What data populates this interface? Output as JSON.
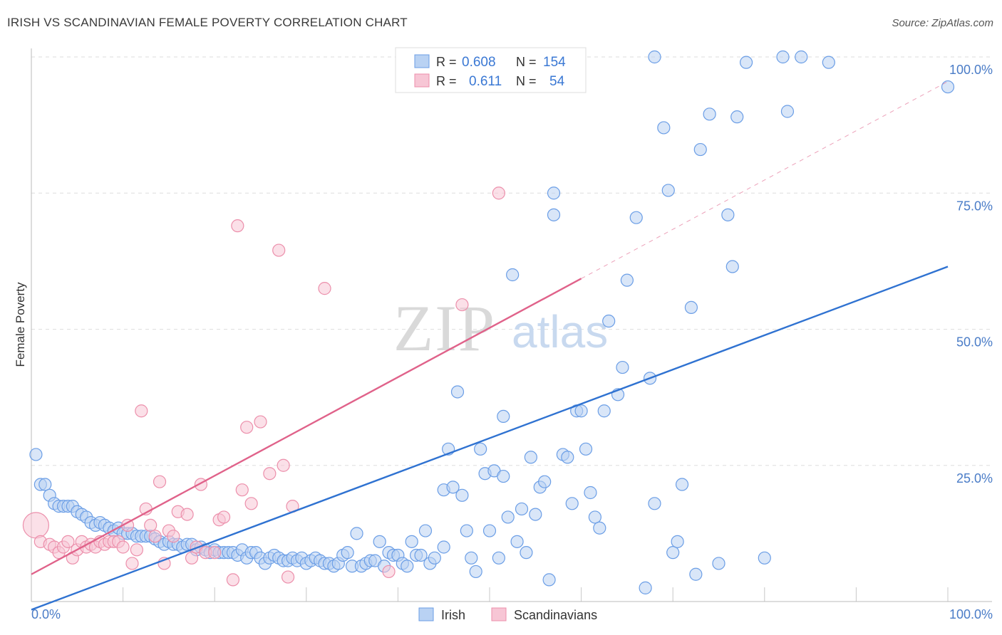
{
  "title": "IRISH VS SCANDINAVIAN FEMALE POVERTY CORRELATION CHART",
  "source": "Source: ZipAtlas.com",
  "watermark": {
    "zip": "ZIP",
    "atlas": "atlas"
  },
  "chart_data": {
    "type": "scatter",
    "title": "IRISH VS SCANDINAVIAN FEMALE POVERTY CORRELATION CHART",
    "xlabel": "",
    "ylabel": "Female Poverty",
    "xlim": [
      0,
      100
    ],
    "ylim": [
      0,
      100
    ],
    "x_tick_labels": [
      "0.0%",
      "100.0%"
    ],
    "y_ticks": [
      25,
      50,
      75,
      100
    ],
    "y_tick_labels": [
      "25.0%",
      "50.0%",
      "75.0%",
      "100.0%"
    ],
    "legend": {
      "placement": "top-center",
      "rows": [
        {
          "r_label": "R =",
          "r_value": "0.608",
          "n_label": "N =",
          "n_value": "154"
        },
        {
          "r_label": "R =",
          "r_value": "0.611",
          "n_label": "N =",
          "n_value": "54"
        }
      ]
    },
    "bottom_legend": [
      "Irish",
      "Scandinavians"
    ],
    "series": [
      {
        "name": "Irish",
        "color": "#6b9ee6",
        "fill": "#b9d2f3",
        "line": "#2f72d1",
        "trend": {
          "x0": 0,
          "y0": -1.5,
          "x1": 100,
          "y1": 61.5,
          "dash_from": null
        },
        "points": [
          [
            0.5,
            27
          ],
          [
            1,
            21.5
          ],
          [
            1.5,
            21.5
          ],
          [
            2,
            19.5
          ],
          [
            2.5,
            18
          ],
          [
            3,
            17.5
          ],
          [
            3.5,
            17.5
          ],
          [
            4,
            17.5
          ],
          [
            4.5,
            17.5
          ],
          [
            5,
            16.5
          ],
          [
            5.5,
            16
          ],
          [
            6,
            15.5
          ],
          [
            6.5,
            14.5
          ],
          [
            7,
            14
          ],
          [
            7.5,
            14.5
          ],
          [
            8,
            14
          ],
          [
            8.5,
            13.5
          ],
          [
            9,
            13
          ],
          [
            9.5,
            13.5
          ],
          [
            10,
            12.5
          ],
          [
            10.5,
            12.5
          ],
          [
            11,
            12.5
          ],
          [
            11.5,
            12
          ],
          [
            12,
            12
          ],
          [
            12.5,
            12
          ],
          [
            13,
            12
          ],
          [
            13.5,
            11.5
          ],
          [
            14,
            11
          ],
          [
            14.5,
            10.5
          ],
          [
            15,
            11
          ],
          [
            15.5,
            10.5
          ],
          [
            16,
            10.5
          ],
          [
            16.5,
            10
          ],
          [
            17,
            10.5
          ],
          [
            17.5,
            10.5
          ],
          [
            18,
            9.5
          ],
          [
            18.5,
            10
          ],
          [
            19,
            9.5
          ],
          [
            19.5,
            9
          ],
          [
            20,
            9.5
          ],
          [
            20.5,
            9
          ],
          [
            21,
            9
          ],
          [
            21.5,
            9
          ],
          [
            22,
            9
          ],
          [
            22.5,
            8.5
          ],
          [
            23,
            9.5
          ],
          [
            23.5,
            8
          ],
          [
            24,
            9
          ],
          [
            24.5,
            9
          ],
          [
            25,
            8
          ],
          [
            25.5,
            7
          ],
          [
            26,
            8
          ],
          [
            26.5,
            8.5
          ],
          [
            27,
            8
          ],
          [
            27.5,
            7.5
          ],
          [
            28,
            7.5
          ],
          [
            28.5,
            8
          ],
          [
            29,
            7.5
          ],
          [
            29.5,
            8
          ],
          [
            30,
            7
          ],
          [
            30.5,
            7.5
          ],
          [
            31,
            8
          ],
          [
            31.5,
            7.5
          ],
          [
            32,
            7
          ],
          [
            32.5,
            7
          ],
          [
            33,
            6.5
          ],
          [
            33.5,
            7
          ],
          [
            34,
            8.5
          ],
          [
            34.5,
            9
          ],
          [
            35,
            6.5
          ],
          [
            35.5,
            12.5
          ],
          [
            36,
            6.5
          ],
          [
            36.5,
            7
          ],
          [
            37,
            7.5
          ],
          [
            37.5,
            7.5
          ],
          [
            38,
            11
          ],
          [
            38.5,
            6.5
          ],
          [
            39,
            9
          ],
          [
            39.5,
            8.5
          ],
          [
            40,
            8.5
          ],
          [
            40.5,
            7
          ],
          [
            41,
            6.5
          ],
          [
            41.5,
            11
          ],
          [
            42,
            8.5
          ],
          [
            42.5,
            8.5
          ],
          [
            43,
            13
          ],
          [
            43.5,
            7
          ],
          [
            44,
            8
          ],
          [
            45,
            10
          ],
          [
            45.5,
            28
          ],
          [
            45,
            20.5
          ],
          [
            46,
            21
          ],
          [
            46.5,
            38.5
          ],
          [
            47,
            19.5
          ],
          [
            47.5,
            13
          ],
          [
            48,
            8
          ],
          [
            48.5,
            5.5
          ],
          [
            49,
            28
          ],
          [
            49.5,
            23.5
          ],
          [
            50,
            13
          ],
          [
            50.5,
            24
          ],
          [
            51,
            8
          ],
          [
            51.5,
            23
          ],
          [
            51.5,
            34
          ],
          [
            52,
            15.5
          ],
          [
            52.5,
            60
          ],
          [
            53,
            11
          ],
          [
            53.5,
            17
          ],
          [
            54,
            9
          ],
          [
            54.5,
            26.5
          ],
          [
            55,
            16
          ],
          [
            55.5,
            21
          ],
          [
            56,
            22
          ],
          [
            56.5,
            4
          ],
          [
            57,
            71
          ],
          [
            57,
            75
          ],
          [
            58,
            27
          ],
          [
            58.5,
            26.5
          ],
          [
            59,
            18
          ],
          [
            59.5,
            35
          ],
          [
            60,
            35
          ],
          [
            60.5,
            28
          ],
          [
            61,
            20
          ],
          [
            61.5,
            15.5
          ],
          [
            62,
            13.5
          ],
          [
            62.5,
            35
          ],
          [
            63,
            51.5
          ],
          [
            64,
            38
          ],
          [
            64.5,
            43
          ],
          [
            65,
            59
          ],
          [
            66,
            70.5
          ],
          [
            67,
            2.5
          ],
          [
            67.5,
            41
          ],
          [
            68,
            18
          ],
          [
            68,
            100
          ],
          [
            69,
            87
          ],
          [
            69.5,
            75.5
          ],
          [
            70,
            9
          ],
          [
            70.5,
            11
          ],
          [
            71,
            21.5
          ],
          [
            72,
            54
          ],
          [
            72.5,
            5
          ],
          [
            73,
            83
          ],
          [
            74,
            89.5
          ],
          [
            75,
            7
          ],
          [
            76,
            71
          ],
          [
            76.5,
            61.5
          ],
          [
            77,
            89
          ],
          [
            78,
            99
          ],
          [
            80,
            8
          ],
          [
            82,
            100
          ],
          [
            82.5,
            90
          ],
          [
            84,
            100
          ],
          [
            87,
            99
          ],
          [
            100,
            94.5
          ]
        ]
      },
      {
        "name": "Scandinavians",
        "color": "#ec8fab",
        "fill": "#f7c6d5",
        "line": "#e0628a",
        "trend": {
          "x0": 0,
          "y0": 5,
          "x1": 100,
          "y1": 95.5,
          "dash_from": 60
        },
        "points": [
          [
            0.5,
            14
          ],
          [
            1,
            11
          ],
          [
            2,
            10.5
          ],
          [
            2.5,
            10
          ],
          [
            3,
            9
          ],
          [
            3.5,
            10
          ],
          [
            4,
            11
          ],
          [
            4.5,
            8
          ],
          [
            5,
            9.5
          ],
          [
            5.5,
            11
          ],
          [
            6,
            10
          ],
          [
            6.5,
            10.5
          ],
          [
            7,
            10
          ],
          [
            7.5,
            11
          ],
          [
            8,
            10.5
          ],
          [
            8.5,
            11
          ],
          [
            9,
            11
          ],
          [
            9.5,
            11
          ],
          [
            10,
            10
          ],
          [
            10.5,
            14
          ],
          [
            11,
            7
          ],
          [
            11.5,
            9.5
          ],
          [
            12,
            35
          ],
          [
            12.5,
            17
          ],
          [
            13,
            14
          ],
          [
            13.5,
            12
          ],
          [
            14,
            22
          ],
          [
            14.5,
            7
          ],
          [
            15,
            13
          ],
          [
            15.5,
            12
          ],
          [
            16,
            16.5
          ],
          [
            17,
            16
          ],
          [
            17.5,
            8
          ],
          [
            18,
            10
          ],
          [
            18.5,
            21.5
          ],
          [
            19,
            9
          ],
          [
            20,
            9
          ],
          [
            20.5,
            15
          ],
          [
            21,
            15.5
          ],
          [
            22,
            4
          ],
          [
            22.5,
            69
          ],
          [
            23,
            20.5
          ],
          [
            23.5,
            32
          ],
          [
            24,
            18
          ],
          [
            25,
            33
          ],
          [
            26,
            23.5
          ],
          [
            27,
            64.5
          ],
          [
            27.5,
            25
          ],
          [
            28,
            4.5
          ],
          [
            28.5,
            17.5
          ],
          [
            32,
            57.5
          ],
          [
            39,
            5.5
          ],
          [
            47,
            54.5
          ],
          [
            51,
            75
          ]
        ]
      }
    ]
  }
}
